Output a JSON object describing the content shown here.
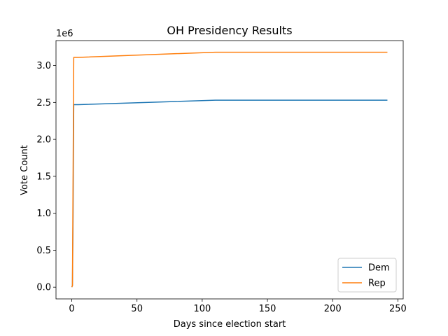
{
  "chart_data": {
    "type": "line",
    "title": "OH Presidency Results",
    "xlabel": "Days since election start",
    "ylabel": "Vote Count",
    "offset_text": "1e6",
    "xlim": [
      -12.1,
      254.1
    ],
    "ylim": [
      -0.159,
      3.337
    ],
    "xticks": [
      0,
      50,
      100,
      150,
      200,
      250
    ],
    "xtick_labels": [
      "0",
      "50",
      "100",
      "150",
      "200",
      "250"
    ],
    "yticks": [
      0.0,
      0.5,
      1.0,
      1.5,
      2.0,
      2.5,
      3.0
    ],
    "ytick_labels": [
      "0.0",
      "0.5",
      "1.0",
      "1.5",
      "2.0",
      "2.5",
      "3.0"
    ],
    "grid": false,
    "legend": "lower-right",
    "series": [
      {
        "name": "Dem",
        "color": "#1f77b4",
        "x": [
          0,
          0.5,
          1,
          1.5,
          5,
          110,
          242
        ],
        "y": [
          0.0,
          0.02,
          1.0,
          2.47,
          2.47,
          2.53,
          2.53
        ]
      },
      {
        "name": "Rep",
        "color": "#ff7f0e",
        "x": [
          0,
          0.5,
          1,
          1.5,
          5,
          110,
          242
        ],
        "y": [
          0.0,
          0.02,
          1.5,
          3.11,
          3.11,
          3.18,
          3.18
        ]
      }
    ]
  }
}
